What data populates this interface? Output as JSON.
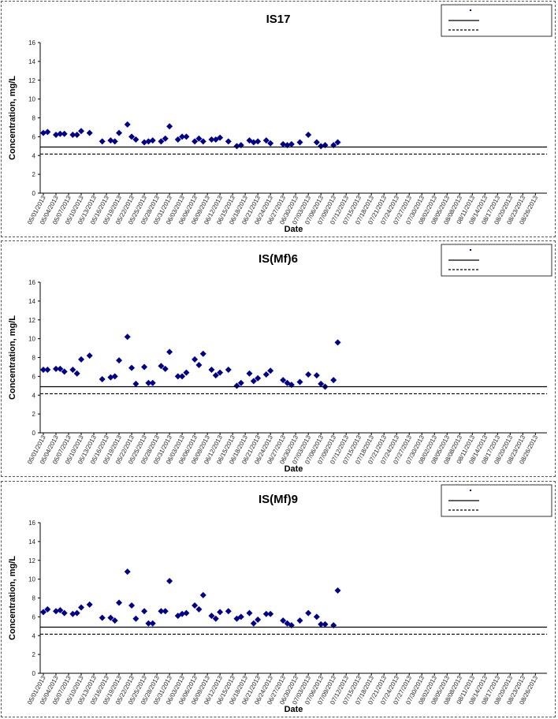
{
  "chart_data": [
    {
      "type": "scatter",
      "title": "IS17",
      "xlabel": "Date",
      "ylabel": "Concentration, mg/L",
      "ylim": [
        0,
        16
      ],
      "yticks": [
        0,
        2,
        4,
        6,
        8,
        10,
        12,
        14,
        16
      ],
      "xlim": [
        "05/01/2013",
        "08/28/2013"
      ],
      "xtick_labels": [
        "05/01/2013",
        "05/04/2013",
        "05/07/2013",
        "05/10/2013",
        "05/13/2013",
        "05/16/2013",
        "05/19/2013",
        "05/22/2013",
        "05/25/2013",
        "05/28/2013",
        "05/31/2013",
        "06/03/2013",
        "06/06/2013",
        "06/09/2013",
        "06/12/2013",
        "06/15/2013",
        "06/18/2013",
        "06/21/2013",
        "06/24/2013",
        "06/27/2013",
        "06/30/2013",
        "07/03/2013",
        "07/06/2013",
        "07/09/2013",
        "07/12/2013",
        "07/15/2013",
        "07/18/2013",
        "07/21/2013",
        "07/24/2013",
        "07/27/2013",
        "07/30/2013",
        "08/02/2013",
        "08/05/2013",
        "08/08/2013",
        "08/11/2013",
        "08/14/2013",
        "08/17/2013",
        "08/20/2013",
        "08/23/2013",
        "08/26/2013"
      ],
      "grid": false,
      "legend_position": "top-right",
      "series": [
        {
          "marker": "diamond",
          "color": "#00008B",
          "points": [
            [
              "05/01/2013",
              6.4
            ],
            [
              "05/02/2013",
              6.5
            ],
            [
              "05/04/2013",
              6.2
            ],
            [
              "05/05/2013",
              6.3
            ],
            [
              "05/06/2013",
              6.3
            ],
            [
              "05/08/2013",
              6.2
            ],
            [
              "05/09/2013",
              6.2
            ],
            [
              "05/10/2013",
              6.6
            ],
            [
              "05/12/2013",
              6.4
            ],
            [
              "05/15/2013",
              5.5
            ],
            [
              "05/17/2013",
              5.6
            ],
            [
              "05/18/2013",
              5.5
            ],
            [
              "05/19/2013",
              6.4
            ],
            [
              "05/21/2013",
              7.3
            ],
            [
              "05/22/2013",
              6.0
            ],
            [
              "05/23/2013",
              5.7
            ],
            [
              "05/25/2013",
              5.4
            ],
            [
              "05/26/2013",
              5.5
            ],
            [
              "05/27/2013",
              5.6
            ],
            [
              "05/29/2013",
              5.5
            ],
            [
              "05/30/2013",
              5.8
            ],
            [
              "05/31/2013",
              7.1
            ],
            [
              "06/02/2013",
              5.7
            ],
            [
              "06/03/2013",
              6.0
            ],
            [
              "06/04/2013",
              6.0
            ],
            [
              "06/06/2013",
              5.5
            ],
            [
              "06/07/2013",
              5.8
            ],
            [
              "06/08/2013",
              5.5
            ],
            [
              "06/10/2013",
              5.7
            ],
            [
              "06/11/2013",
              5.7
            ],
            [
              "06/12/2013",
              5.9
            ],
            [
              "06/14/2013",
              5.5
            ],
            [
              "06/16/2013",
              5.0
            ],
            [
              "06/17/2013",
              5.1
            ],
            [
              "06/19/2013",
              5.6
            ],
            [
              "06/20/2013",
              5.4
            ],
            [
              "06/21/2013",
              5.5
            ],
            [
              "06/23/2013",
              5.6
            ],
            [
              "06/24/2013",
              5.3
            ],
            [
              "06/27/2013",
              5.2
            ],
            [
              "06/28/2013",
              5.1
            ],
            [
              "06/29/2013",
              5.2
            ],
            [
              "07/01/2013",
              5.4
            ],
            [
              "07/03/2013",
              6.2
            ],
            [
              "07/05/2013",
              5.4
            ],
            [
              "07/06/2013",
              5.0
            ],
            [
              "07/07/2013",
              5.1
            ],
            [
              "07/09/2013",
              5.1
            ],
            [
              "07/10/2013",
              5.4
            ]
          ]
        },
        {
          "name": "",
          "line": "solid",
          "value": 4.9
        },
        {
          "name": "",
          "line": "dashed",
          "value": 4.15
        }
      ]
    },
    {
      "type": "scatter",
      "title": "IS(Mf)6",
      "xlabel": "Date",
      "ylabel": "Concentration, mg/L",
      "ylim": [
        0,
        16
      ],
      "yticks": [
        0,
        2,
        4,
        6,
        8,
        10,
        12,
        14,
        16
      ],
      "xlim": [
        "05/01/2013",
        "08/28/2013"
      ],
      "xtick_labels": [
        "05/01/2013",
        "05/04/2013",
        "05/07/2013",
        "05/10/2013",
        "05/13/2013",
        "05/16/2013",
        "05/19/2013",
        "05/22/2013",
        "05/25/2013",
        "05/28/2013",
        "05/31/2013",
        "06/03/2013",
        "06/06/2013",
        "06/09/2013",
        "06/12/2013",
        "06/15/2013",
        "06/18/2013",
        "06/21/2013",
        "06/24/2013",
        "06/27/2013",
        "06/30/2013",
        "07/03/2013",
        "07/06/2013",
        "07/09/2013",
        "07/12/2013",
        "07/15/2013",
        "07/18/2013",
        "07/21/2013",
        "07/24/2013",
        "07/27/2013",
        "07/30/2013",
        "08/02/2013",
        "08/05/2013",
        "08/08/2013",
        "08/11/2013",
        "08/14/2013",
        "08/17/2013",
        "08/20/2013",
        "08/23/2013",
        "08/26/2013"
      ],
      "grid": false,
      "legend_position": "top-right",
      "series": [
        {
          "marker": "diamond",
          "color": "#00008B",
          "points": [
            [
              "05/01/2013",
              6.7
            ],
            [
              "05/02/2013",
              6.7
            ],
            [
              "05/04/2013",
              6.8
            ],
            [
              "05/05/2013",
              6.8
            ],
            [
              "05/06/2013",
              6.5
            ],
            [
              "05/08/2013",
              6.7
            ],
            [
              "05/09/2013",
              6.3
            ],
            [
              "05/10/2013",
              7.8
            ],
            [
              "05/12/2013",
              8.2
            ],
            [
              "05/15/2013",
              5.7
            ],
            [
              "05/17/2013",
              5.9
            ],
            [
              "05/18/2013",
              6.0
            ],
            [
              "05/19/2013",
              7.7
            ],
            [
              "05/21/2013",
              10.2
            ],
            [
              "05/22/2013",
              6.9
            ],
            [
              "05/23/2013",
              5.2
            ],
            [
              "05/25/2013",
              7.0
            ],
            [
              "05/26/2013",
              5.3
            ],
            [
              "05/27/2013",
              5.3
            ],
            [
              "05/29/2013",
              7.1
            ],
            [
              "05/30/2013",
              6.8
            ],
            [
              "05/31/2013",
              8.6
            ],
            [
              "06/02/2013",
              6.0
            ],
            [
              "06/03/2013",
              6.0
            ],
            [
              "06/04/2013",
              6.4
            ],
            [
              "06/06/2013",
              7.8
            ],
            [
              "06/07/2013",
              7.2
            ],
            [
              "06/08/2013",
              8.4
            ],
            [
              "06/10/2013",
              6.7
            ],
            [
              "06/11/2013",
              6.1
            ],
            [
              "06/12/2013",
              6.4
            ],
            [
              "06/14/2013",
              6.7
            ],
            [
              "06/16/2013",
              5.0
            ],
            [
              "06/17/2013",
              5.3
            ],
            [
              "06/19/2013",
              6.3
            ],
            [
              "06/20/2013",
              5.5
            ],
            [
              "06/21/2013",
              5.8
            ],
            [
              "06/23/2013",
              6.2
            ],
            [
              "06/24/2013",
              6.6
            ],
            [
              "06/27/2013",
              5.6
            ],
            [
              "06/28/2013",
              5.3
            ],
            [
              "06/29/2013",
              5.1
            ],
            [
              "07/01/2013",
              5.4
            ],
            [
              "07/03/2013",
              6.2
            ],
            [
              "07/05/2013",
              6.1
            ],
            [
              "07/06/2013",
              5.2
            ],
            [
              "07/07/2013",
              4.9
            ],
            [
              "07/09/2013",
              5.6
            ],
            [
              "07/10/2013",
              9.6
            ]
          ]
        },
        {
          "name": "",
          "line": "solid",
          "value": 4.9
        },
        {
          "name": "",
          "line": "dashed",
          "value": 4.15
        }
      ]
    },
    {
      "type": "scatter",
      "title": "IS(Mf)9",
      "xlabel": "Date",
      "ylabel": "Concentration, mg/L",
      "ylim": [
        0,
        16
      ],
      "yticks": [
        0,
        2,
        4,
        6,
        8,
        10,
        12,
        14,
        16
      ],
      "xlim": [
        "05/01/2013",
        "08/28/2013"
      ],
      "xtick_labels": [
        "05/01/2013",
        "05/04/2013",
        "05/07/2013",
        "05/10/2013",
        "05/13/2013",
        "05/16/2013",
        "05/19/2013",
        "05/22/2013",
        "05/25/2013",
        "05/28/2013",
        "05/31/2013",
        "06/03/2013",
        "06/06/2013",
        "06/09/2013",
        "06/12/2013",
        "06/15/2013",
        "06/18/2013",
        "06/21/2013",
        "06/24/2013",
        "06/27/2013",
        "06/30/2013",
        "07/03/2013",
        "07/06/2013",
        "07/09/2013",
        "07/12/2013",
        "07/15/2013",
        "07/18/2013",
        "07/21/2013",
        "07/24/2013",
        "07/27/2013",
        "07/30/2013",
        "08/02/2013",
        "08/05/2013",
        "08/08/2013",
        "08/11/2013",
        "08/14/2013",
        "08/17/2013",
        "08/20/2013",
        "08/23/2013",
        "08/26/2013"
      ],
      "grid": false,
      "legend_position": "top-right",
      "series": [
        {
          "marker": "diamond",
          "color": "#00008B",
          "points": [
            [
              "05/01/2013",
              6.5
            ],
            [
              "05/02/2013",
              6.8
            ],
            [
              "05/04/2013",
              6.6
            ],
            [
              "05/05/2013",
              6.7
            ],
            [
              "05/06/2013",
              6.4
            ],
            [
              "05/08/2013",
              6.3
            ],
            [
              "05/09/2013",
              6.4
            ],
            [
              "05/10/2013",
              7.0
            ],
            [
              "05/12/2013",
              7.3
            ],
            [
              "05/15/2013",
              5.9
            ],
            [
              "05/17/2013",
              5.9
            ],
            [
              "05/18/2013",
              5.6
            ],
            [
              "05/19/2013",
              7.5
            ],
            [
              "05/21/2013",
              10.8
            ],
            [
              "05/22/2013",
              7.2
            ],
            [
              "05/23/2013",
              5.8
            ],
            [
              "05/25/2013",
              6.6
            ],
            [
              "05/26/2013",
              5.3
            ],
            [
              "05/27/2013",
              5.3
            ],
            [
              "05/29/2013",
              6.6
            ],
            [
              "05/30/2013",
              6.6
            ],
            [
              "05/31/2013",
              9.8
            ],
            [
              "06/02/2013",
              6.1
            ],
            [
              "06/03/2013",
              6.3
            ],
            [
              "06/04/2013",
              6.4
            ],
            [
              "06/06/2013",
              7.2
            ],
            [
              "06/07/2013",
              6.8
            ],
            [
              "06/08/2013",
              8.3
            ],
            [
              "06/10/2013",
              6.1
            ],
            [
              "06/11/2013",
              5.8
            ],
            [
              "06/12/2013",
              6.5
            ],
            [
              "06/14/2013",
              6.6
            ],
            [
              "06/16/2013",
              5.8
            ],
            [
              "06/17/2013",
              6.0
            ],
            [
              "06/19/2013",
              6.4
            ],
            [
              "06/20/2013",
              5.3
            ],
            [
              "06/21/2013",
              5.7
            ],
            [
              "06/23/2013",
              6.3
            ],
            [
              "06/24/2013",
              6.3
            ],
            [
              "06/27/2013",
              5.6
            ],
            [
              "06/28/2013",
              5.3
            ],
            [
              "06/29/2013",
              5.1
            ],
            [
              "07/01/2013",
              5.6
            ],
            [
              "07/03/2013",
              6.4
            ],
            [
              "07/05/2013",
              6.0
            ],
            [
              "07/06/2013",
              5.2
            ],
            [
              "07/07/2013",
              5.2
            ],
            [
              "07/09/2013",
              5.1
            ],
            [
              "07/10/2013",
              8.8
            ]
          ]
        },
        {
          "name": "",
          "line": "solid",
          "value": 4.9
        },
        {
          "name": "",
          "line": "dashed",
          "value": 4.15
        }
      ]
    }
  ]
}
